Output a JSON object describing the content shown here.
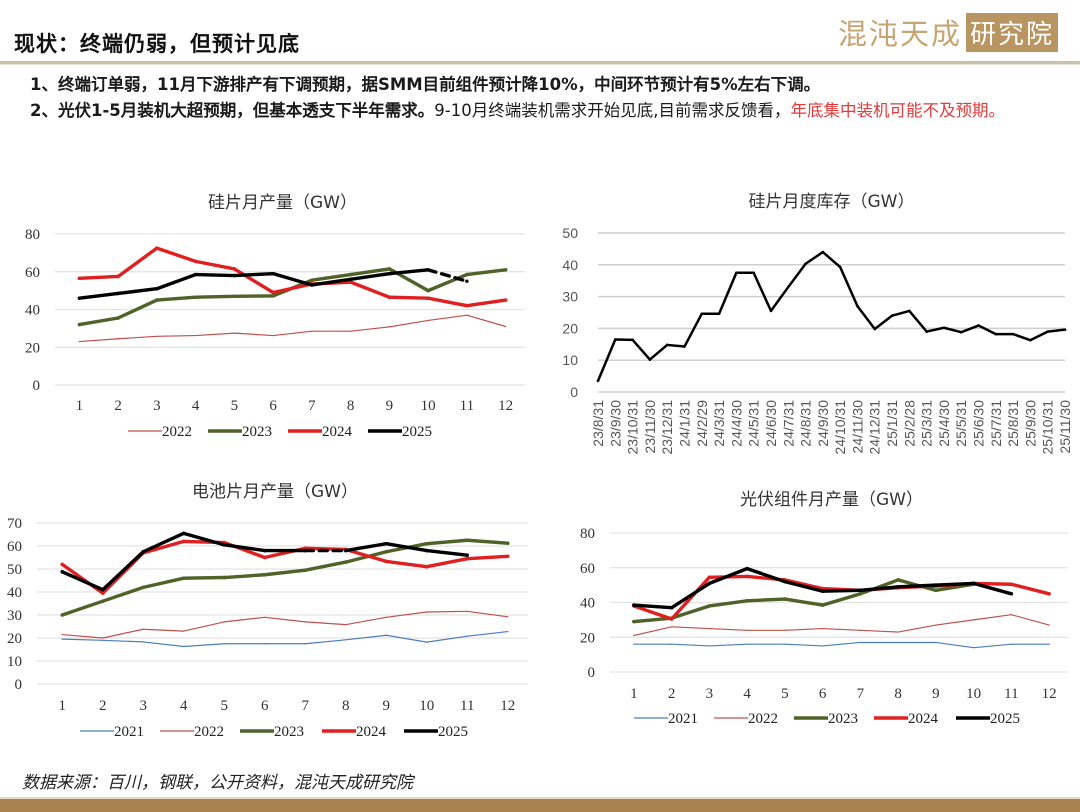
{
  "header": {
    "title": "现状：终端仍弱，但预计见底",
    "logo_main": "混沌天成",
    "logo_box": "研究院"
  },
  "bullets": {
    "line1": "1、终端订单弱，11月下游排产有下调预期，据SMM目前组件预计降10%，中间环节预计有5%左右下调。",
    "line2_bold": "2、光伏1-5月装机大超预期，但基本透支下半年需求。",
    "line2_normal": "9-10月终端装机需求开始见底,目前需求反馈看，",
    "line2_red": "年底集中装机可能不及预期。"
  },
  "source": "数据来源：百川，钢联，公开资料，混沌天成研究院",
  "colors": {
    "y2021": "#4a7ebb",
    "y2022": "#c0504d",
    "y2023": "#4f6228",
    "y2024": "#e02020",
    "y2025": "#000000",
    "brand": "#b89561"
  },
  "chart_data": [
    {
      "id": "wafer-output",
      "type": "line",
      "title": "硅片月产量（GW）",
      "xlabel": "",
      "ylabel": "",
      "categories": [
        "1",
        "2",
        "3",
        "4",
        "5",
        "6",
        "7",
        "8",
        "9",
        "10",
        "11",
        "12"
      ],
      "yticks": [
        0,
        20,
        40,
        60,
        80
      ],
      "ylim": [
        0,
        80
      ],
      "grid": true,
      "legend": "bottom",
      "series": [
        {
          "name": "2022",
          "color_key": "y2022",
          "weight": "thin",
          "values": [
            23,
            24.5,
            25.8,
            26.2,
            27.5,
            26.2,
            28.5,
            28.5,
            30.8,
            34.2,
            37,
            31
          ]
        },
        {
          "name": "2023",
          "color_key": "y2023",
          "weight": "thick",
          "values": [
            32,
            35.5,
            45,
            46.5,
            47,
            47.2,
            55.5,
            58.5,
            61.5,
            50,
            58.5,
            61
          ]
        },
        {
          "name": "2024",
          "color_key": "y2024",
          "weight": "thick",
          "values": [
            56.5,
            57.5,
            72.5,
            65.5,
            61.5,
            49,
            53.5,
            54.5,
            46.5,
            46,
            42,
            45
          ]
        },
        {
          "name": "2025",
          "color_key": "y2025",
          "weight": "thick",
          "values": [
            46,
            48.5,
            51,
            58.5,
            58,
            59,
            53,
            56,
            59,
            61,
            55,
            null
          ],
          "dashed_segments": [
            [
              9,
              10
            ]
          ]
        }
      ]
    },
    {
      "id": "wafer-inventory",
      "type": "line",
      "title": "硅片月度库存（GW）",
      "xlabel": "",
      "ylabel": "",
      "categories": [
        "23/8/31",
        "23/9/30",
        "23/10/31",
        "23/11/30",
        "23/12/31",
        "24/1/31",
        "24/2/29",
        "24/3/31",
        "24/4/30",
        "24/5/31",
        "24/6/30",
        "24/7/31",
        "24/8/31",
        "24/9/30",
        "24/10/31",
        "24/11/30",
        "24/12/31",
        "25/1/31",
        "25/2/28",
        "25/3/31",
        "25/4/30",
        "25/5/31",
        "25/6/30",
        "25/7/31",
        "25/8/31",
        "25/9/30",
        "25/10/31",
        "25/11/30"
      ],
      "yticks": [
        0,
        10,
        20,
        30,
        40,
        50
      ],
      "ylim": [
        0,
        50
      ],
      "grid": true,
      "legend": "none",
      "series": [
        {
          "name": "库存",
          "color_key": "y2025",
          "weight": "medium",
          "values": [
            3.5,
            16.5,
            16.4,
            10.2,
            14.8,
            14.3,
            24.6,
            24.6,
            37.5,
            37.5,
            25.5,
            33,
            40.3,
            44,
            39.3,
            27,
            19.8,
            24,
            25.5,
            19,
            20.2,
            18.8,
            20.9,
            18.2,
            18.2,
            16.3,
            19,
            19.6
          ]
        }
      ]
    },
    {
      "id": "cell-output",
      "type": "line",
      "title": "电池片月产量（GW）",
      "xlabel": "",
      "ylabel": "",
      "categories": [
        "1",
        "2",
        "3",
        "4",
        "5",
        "6",
        "7",
        "8",
        "9",
        "10",
        "11",
        "12"
      ],
      "yticks": [
        0,
        10,
        20,
        30,
        40,
        50,
        60,
        70
      ],
      "ylim": [
        0,
        70
      ],
      "grid": true,
      "legend": "bottom",
      "series": [
        {
          "name": "2021",
          "color_key": "y2021",
          "weight": "thin",
          "values": [
            19.5,
            19,
            18.3,
            16.3,
            17.5,
            17.5,
            17.5,
            19.2,
            21.2,
            18.2,
            20.8,
            22.8
          ]
        },
        {
          "name": "2022",
          "color_key": "y2022",
          "weight": "thin",
          "values": [
            21.5,
            20,
            23.8,
            23,
            27,
            29,
            27,
            25.8,
            29,
            31.3,
            31.6,
            29.2
          ]
        },
        {
          "name": "2023",
          "color_key": "y2023",
          "weight": "thick",
          "values": [
            30,
            36,
            42,
            46,
            46.3,
            47.5,
            49.5,
            53,
            57.5,
            61,
            62.5,
            61.2
          ]
        },
        {
          "name": "2024",
          "color_key": "y2024",
          "weight": "thick",
          "values": [
            52,
            39.5,
            57,
            62,
            61.5,
            55,
            59,
            58.5,
            53.3,
            51,
            54.5,
            55.5
          ]
        },
        {
          "name": "2025",
          "color_key": "y2025",
          "weight": "thick",
          "values": [
            48.8,
            41,
            57.5,
            65.5,
            60.5,
            58,
            58,
            58,
            61,
            58,
            56,
            null
          ],
          "dashed_segments": [
            [
              6,
              7
            ]
          ]
        }
      ]
    },
    {
      "id": "module-output",
      "type": "line",
      "title": "光伏组件月产量（GW）",
      "xlabel": "",
      "ylabel": "",
      "categories": [
        "1",
        "2",
        "3",
        "4",
        "5",
        "6",
        "7",
        "8",
        "9",
        "10",
        "11",
        "12"
      ],
      "yticks": [
        0,
        20,
        40,
        60,
        80
      ],
      "ylim": [
        0,
        80
      ],
      "grid": true,
      "legend": "bottom",
      "series": [
        {
          "name": "2021",
          "color_key": "y2021",
          "weight": "thin",
          "values": [
            16,
            16,
            15,
            16,
            16,
            15,
            17,
            17,
            17,
            14,
            16,
            16
          ]
        },
        {
          "name": "2022",
          "color_key": "y2022",
          "weight": "thin",
          "values": [
            21,
            26,
            25,
            24,
            24,
            25,
            24,
            23,
            27,
            30,
            33,
            27
          ]
        },
        {
          "name": "2023",
          "color_key": "y2023",
          "weight": "thick",
          "values": [
            29,
            31,
            38,
            41,
            42,
            38.5,
            45,
            53,
            47,
            50.5,
            null,
            null
          ]
        },
        {
          "name": "2024",
          "color_key": "y2024",
          "weight": "thick",
          "values": [
            38,
            30.5,
            54.5,
            55,
            53,
            48,
            47,
            48.5,
            49.5,
            51,
            50.5,
            45
          ]
        },
        {
          "name": "2025",
          "color_key": "y2025",
          "weight": "thick",
          "values": [
            38.5,
            37,
            51,
            59.5,
            52,
            46.5,
            47,
            49,
            50,
            51,
            45,
            null
          ]
        }
      ]
    }
  ]
}
